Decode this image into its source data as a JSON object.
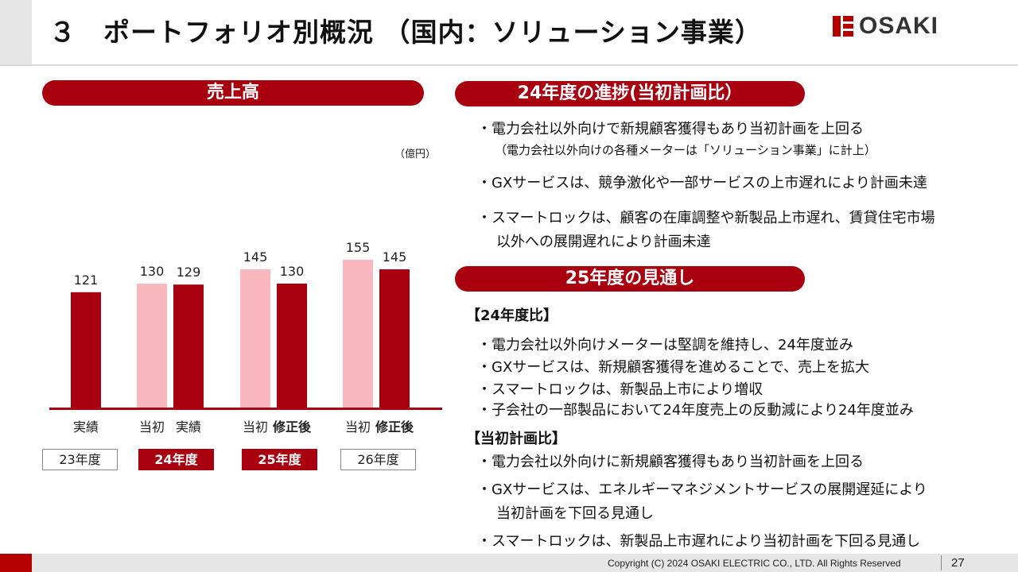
{
  "header": {
    "title": "３　ポートフォリオ別概況 （国内：ソリューション事業）",
    "logo_text": "OSAKI",
    "logo_icon": "osaki-logo-icon"
  },
  "left_pill": "売上高",
  "unit": "（億円）",
  "year_boxes": [
    "23年度",
    "24年度",
    "25年度",
    "26年度"
  ],
  "chart_data": {
    "type": "bar",
    "title": "売上高",
    "ylabel": "（億円）",
    "ylim": [
      0,
      170
    ],
    "grid": false,
    "legend": "none",
    "categories": [
      "実績",
      "当初",
      "実績",
      "当初",
      "修正後",
      "当初",
      "修正後"
    ],
    "groups": [
      "23年度",
      "24年度",
      "24年度",
      "25年度",
      "25年度",
      "26年度",
      "26年度"
    ],
    "values": [
      121,
      130,
      129,
      145,
      130,
      155,
      145
    ],
    "colors": [
      "#a8000f",
      "#f9b8bd",
      "#a8000f",
      "#f9b8bd",
      "#a8000f",
      "#f9b8bd",
      "#a8000f"
    ]
  },
  "progress": {
    "pill": "24年度の進捗(当初計画比）",
    "bullets": [
      "・電力会社以外向けで新規顧客獲得もあり当初計画を上回る",
      "（電力会社以外向けの各種メーターは「ソリューション事業」に計上）",
      "・GXサービスは、競争激化や一部サービスの上市遅れにより計画未達",
      "・スマートロックは、顧客の在庫調整や新製品上市遅れ、賃貸住宅市場",
      "以外への展開遅れにより計画未達"
    ]
  },
  "outlook": {
    "pill": "25年度の見通し",
    "head1": "【24年度比】",
    "list1": [
      "・電力会社以外向けメーターは堅調を維持し、24年度並み",
      "・GXサービスは、新規顧客獲得を進めることで、売上を拡大",
      "・スマートロックは、新製品上市により増収",
      "・子会社の一部製品において24年度売上の反動減により24年度並み"
    ],
    "head2": "【当初計画比】",
    "list2": [
      "・電力会社以外向けに新規顧客獲得もあり当初計画を上回る",
      "・GXサービスは、エネルギーマネジメントサービスの展開遅延により",
      "当初計画を下回る見通し",
      "・スマートロックは、新製品上市遅れにより当初計画を下回る見通し"
    ]
  },
  "footer": {
    "copyright": "Copyright (C) 2024 OSAKI ELECTRIC CO., LTD. All Rights Reserved",
    "page": "27"
  }
}
